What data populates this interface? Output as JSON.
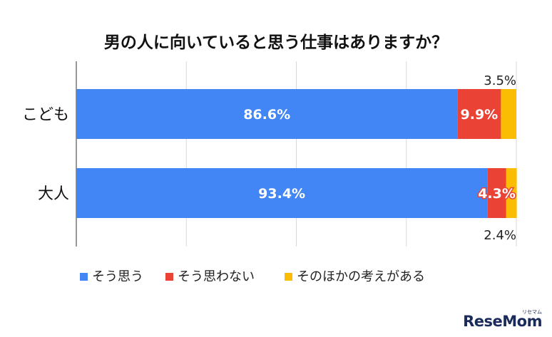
{
  "chart_data": {
    "type": "bar",
    "orientation": "horizontal",
    "stacked": "100%",
    "title": "男の人に向いていると思う仕事はありますか？",
    "categories": [
      "こども",
      "大人"
    ],
    "series": [
      {
        "name": "そう思う",
        "color": "#4285f4",
        "values": [
          86.6,
          93.4
        ],
        "labels": [
          "86.6%",
          "93.4%"
        ]
      },
      {
        "name": "そう思わない",
        "color": "#ea4335",
        "values": [
          9.9,
          4.3
        ],
        "labels": [
          "9.9%",
          "4.3%"
        ]
      },
      {
        "name": "そのほかの考えがある",
        "color": "#fbbc04",
        "values": [
          3.5,
          2.4
        ],
        "labels": [
          "3.5%",
          "2.4%"
        ]
      }
    ],
    "xlim": [
      0,
      100
    ],
    "grid": true,
    "legend_position": "bottom"
  },
  "watermark": {
    "brand": "ReseMom",
    "sub": "リセマム"
  }
}
